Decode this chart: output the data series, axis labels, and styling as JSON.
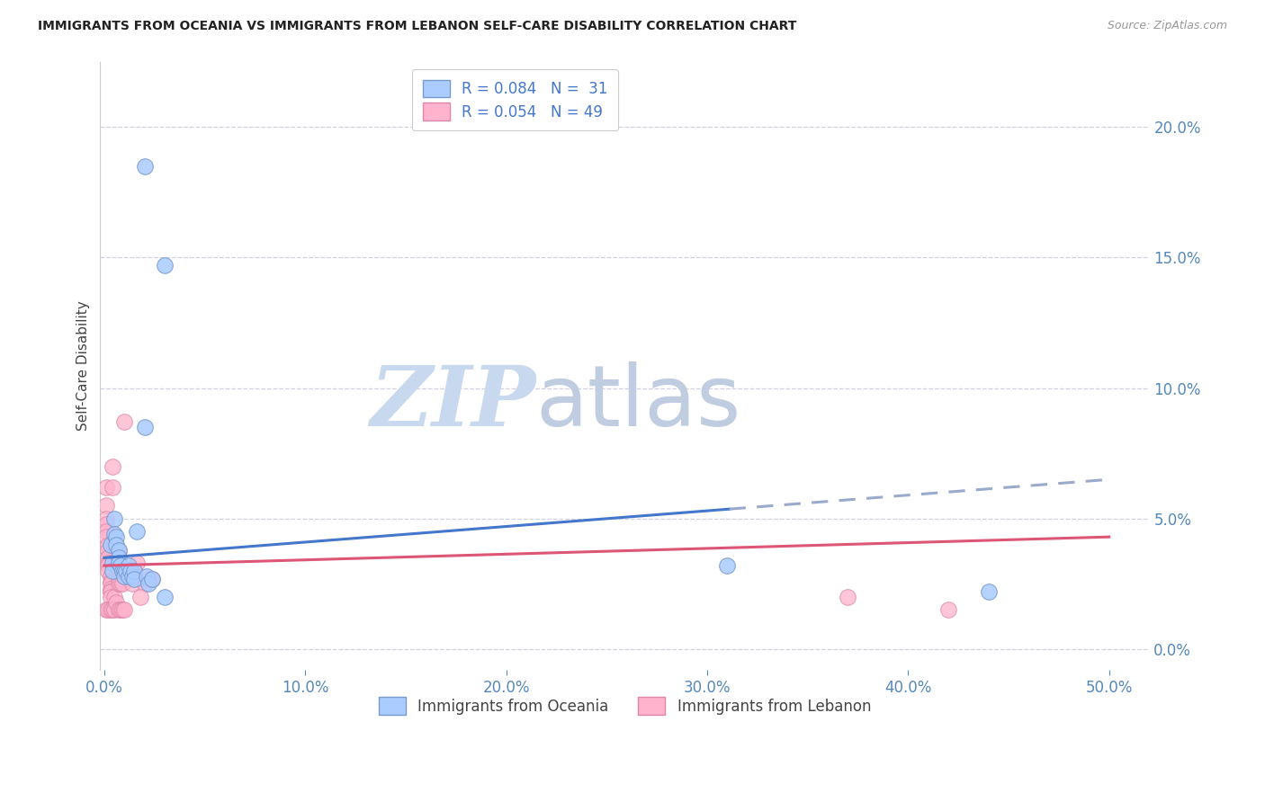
{
  "title": "IMMIGRANTS FROM OCEANIA VS IMMIGRANTS FROM LEBANON SELF-CARE DISABILITY CORRELATION CHART",
  "source": "Source: ZipAtlas.com",
  "ylabel": "Self-Care Disability",
  "xlabel_vals": [
    0.0,
    0.1,
    0.2,
    0.3,
    0.4,
    0.5
  ],
  "ylabel_vals": [
    0.0,
    0.05,
    0.1,
    0.15,
    0.2
  ],
  "xlim": [
    -0.002,
    0.52
  ],
  "ylim": [
    -0.008,
    0.225
  ],
  "oceania_scatter": [
    [
      0.02,
      0.185
    ],
    [
      0.03,
      0.147
    ],
    [
      0.003,
      0.04
    ],
    [
      0.004,
      0.033
    ],
    [
      0.004,
      0.03
    ],
    [
      0.005,
      0.05
    ],
    [
      0.005,
      0.044
    ],
    [
      0.006,
      0.043
    ],
    [
      0.006,
      0.04
    ],
    [
      0.007,
      0.038
    ],
    [
      0.007,
      0.035
    ],
    [
      0.007,
      0.033
    ],
    [
      0.008,
      0.032
    ],
    [
      0.009,
      0.03
    ],
    [
      0.01,
      0.03
    ],
    [
      0.01,
      0.028
    ],
    [
      0.011,
      0.03
    ],
    [
      0.012,
      0.028
    ],
    [
      0.012,
      0.032
    ],
    [
      0.013,
      0.03
    ],
    [
      0.014,
      0.028
    ],
    [
      0.015,
      0.03
    ],
    [
      0.015,
      0.027
    ],
    [
      0.016,
      0.045
    ],
    [
      0.02,
      0.085
    ],
    [
      0.021,
      0.028
    ],
    [
      0.022,
      0.025
    ],
    [
      0.024,
      0.027
    ],
    [
      0.03,
      0.02
    ],
    [
      0.31,
      0.032
    ],
    [
      0.44,
      0.022
    ]
  ],
  "lebanon_scatter": [
    [
      0.001,
      0.062
    ],
    [
      0.001,
      0.055
    ],
    [
      0.001,
      0.05
    ],
    [
      0.001,
      0.048
    ],
    [
      0.001,
      0.045
    ],
    [
      0.001,
      0.043
    ],
    [
      0.002,
      0.04
    ],
    [
      0.002,
      0.038
    ],
    [
      0.002,
      0.035
    ],
    [
      0.002,
      0.033
    ],
    [
      0.002,
      0.032
    ],
    [
      0.002,
      0.03
    ],
    [
      0.003,
      0.028
    ],
    [
      0.003,
      0.026
    ],
    [
      0.003,
      0.025
    ],
    [
      0.003,
      0.023
    ],
    [
      0.003,
      0.022
    ],
    [
      0.003,
      0.022
    ],
    [
      0.003,
      0.02
    ],
    [
      0.004,
      0.062
    ],
    [
      0.004,
      0.07
    ],
    [
      0.005,
      0.04
    ],
    [
      0.005,
      0.02
    ],
    [
      0.006,
      0.032
    ],
    [
      0.007,
      0.038
    ],
    [
      0.007,
      0.027
    ],
    [
      0.007,
      0.025
    ],
    [
      0.008,
      0.025
    ],
    [
      0.009,
      0.025
    ],
    [
      0.01,
      0.087
    ],
    [
      0.013,
      0.03
    ],
    [
      0.014,
      0.025
    ],
    [
      0.016,
      0.033
    ],
    [
      0.02,
      0.025
    ],
    [
      0.022,
      0.027
    ],
    [
      0.024,
      0.027
    ],
    [
      0.001,
      0.015
    ],
    [
      0.002,
      0.015
    ],
    [
      0.003,
      0.015
    ],
    [
      0.004,
      0.015
    ],
    [
      0.005,
      0.015
    ],
    [
      0.006,
      0.018
    ],
    [
      0.007,
      0.015
    ],
    [
      0.008,
      0.015
    ],
    [
      0.009,
      0.015
    ],
    [
      0.01,
      0.015
    ],
    [
      0.37,
      0.02
    ],
    [
      0.42,
      0.015
    ],
    [
      0.018,
      0.02
    ]
  ],
  "oceania_line_solid_end": 0.31,
  "oceania_line_color": "#4477cc",
  "oceania_dash_color": "#99aacc",
  "lebanon_line_color": "#dd5577",
  "grid_color": "#d0d0e0",
  "background_color": "#ffffff",
  "title_color": "#222222",
  "axis_label_color": "#444444",
  "tick_color": "#5588bb",
  "watermark_text_1": "ZIP",
  "watermark_text_2": "atlas",
  "watermark_color_1": "#c8d8ee",
  "watermark_color_2": "#c0cce0"
}
